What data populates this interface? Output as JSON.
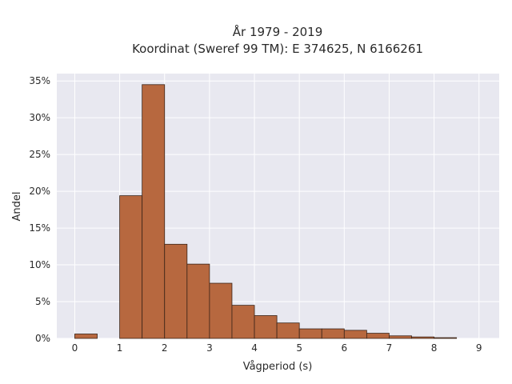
{
  "chart_data": {
    "type": "bar",
    "title_lines": [
      "År 1979 - 2019",
      "Koordinat (Sweref 99 TM): E 374625, N 6166261"
    ],
    "xlabel": "Vågperiod (s)",
    "ylabel": "Andel",
    "xlim": [
      -0.4,
      9.45
    ],
    "ylim": [
      0,
      36
    ],
    "x_ticks": [
      0,
      1,
      2,
      3,
      4,
      5,
      6,
      7,
      8,
      9
    ],
    "y_ticks": [
      0,
      5,
      10,
      15,
      20,
      25,
      30,
      35
    ],
    "y_tick_suffix": "%",
    "bin_width": 0.5,
    "bins": [
      {
        "start": 0.0,
        "value": 0.6
      },
      {
        "start": 0.5,
        "value": 0.0
      },
      {
        "start": 1.0,
        "value": 19.4
      },
      {
        "start": 1.5,
        "value": 34.5
      },
      {
        "start": 2.0,
        "value": 12.8
      },
      {
        "start": 2.5,
        "value": 10.1
      },
      {
        "start": 3.0,
        "value": 7.5
      },
      {
        "start": 3.5,
        "value": 4.5
      },
      {
        "start": 4.0,
        "value": 3.1
      },
      {
        "start": 4.5,
        "value": 2.1
      },
      {
        "start": 5.0,
        "value": 1.3
      },
      {
        "start": 5.5,
        "value": 1.3
      },
      {
        "start": 6.0,
        "value": 1.1
      },
      {
        "start": 6.5,
        "value": 0.7
      },
      {
        "start": 7.0,
        "value": 0.35
      },
      {
        "start": 7.5,
        "value": 0.2
      },
      {
        "start": 8.0,
        "value": 0.1
      }
    ],
    "grid": true,
    "colors": {
      "bar": "#b7683f",
      "bar_edge": "#3a2418",
      "plot_bg": "#e8e8f0",
      "grid": "#ffffff"
    }
  }
}
